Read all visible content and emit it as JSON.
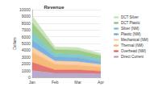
{
  "chart_data": {
    "type": "area",
    "title": "Revenue",
    "y_label": "Dollars",
    "categories": [
      "Jan",
      "Feb",
      "Mar",
      "Apr"
    ],
    "stacked": true,
    "grid": true,
    "legend": "right",
    "ylim": [
      0,
      10000
    ],
    "yticks": [
      0,
      1000,
      2000,
      3000,
      4000,
      5000,
      6000,
      7000,
      8000,
      9000,
      10000
    ],
    "series": [
      {
        "name": "Direct Current",
        "color": "#b3a2c7",
        "values": [
          1000,
          600,
          600,
          500
        ]
      },
      {
        "name": "Overhead (NM)",
        "color": "#e06666",
        "values": [
          1200,
          500,
          500,
          400
        ]
      },
      {
        "name": "Thermal (NM)",
        "color": "#f6b26b",
        "values": [
          1500,
          800,
          700,
          600
        ]
      },
      {
        "name": "Mechanical (NM)",
        "color": "#f9cb9c",
        "values": [
          800,
          500,
          500,
          400
        ]
      },
      {
        "name": "Plastic (NM)",
        "color": "#6fa8dc",
        "values": [
          1000,
          600,
          600,
          400
        ]
      },
      {
        "name": "Silver (NM)",
        "color": "#76c5c5",
        "values": [
          1200,
          500,
          500,
          400
        ]
      },
      {
        "name": "DCT Plastic",
        "color": "#93c47d",
        "values": [
          1400,
          600,
          600,
          500
        ]
      },
      {
        "name": "DCT Silver",
        "color": "#c6e0b4",
        "values": [
          1000,
          400,
          400,
          300
        ]
      }
    ]
  }
}
